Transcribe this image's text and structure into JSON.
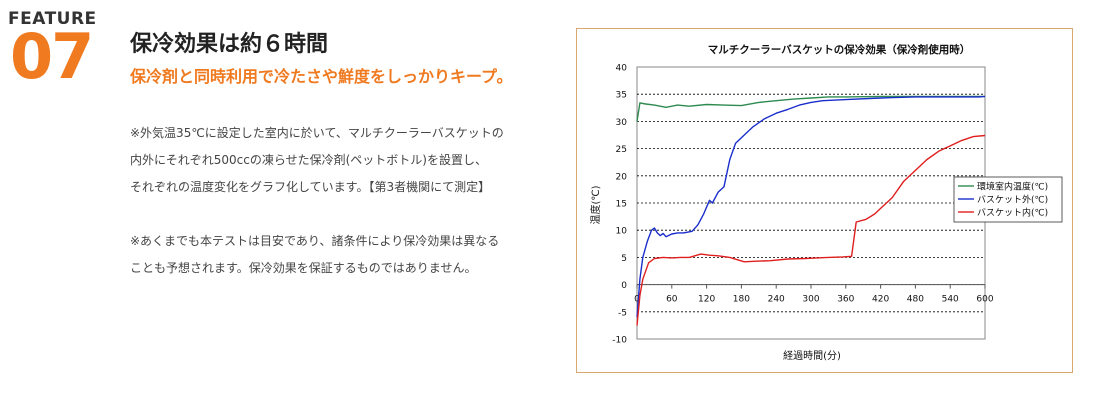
{
  "feature": {
    "label": "FEATURE",
    "number": "07"
  },
  "title": "保冷効果は約６時間",
  "subtitle": "保冷剤と同時利用で冷たさや鮮度をしっかりキープ。",
  "body": {
    "p1": [
      "※外気温35℃に設定した室内に於いて、マルチクーラーバスケットの",
      "内外にそれぞれ500ccの凍らせた保冷剤(ペットボトル)を設置し、",
      "それぞれの温度変化をグラフ化しています。【第3者機関にて測定】"
    ],
    "p2": [
      "※あくまでも本テストは目安であり、諸条件により保冷効果は異なる",
      "ことも予想されます。保冷効果を保証するものではありません。"
    ]
  },
  "colors": {
    "accent": "#f07a20",
    "frame": "#d9a86e"
  },
  "chart_data": {
    "type": "line",
    "title": "マルチクーラーバスケットの保冷効果（保冷剤使用時）",
    "xlabel": "経過時間(分)",
    "ylabel": "温度(℃)",
    "xlim": [
      0,
      600
    ],
    "ylim": [
      -10,
      40
    ],
    "xticks": [
      0,
      60,
      120,
      180,
      240,
      300,
      360,
      420,
      480,
      540,
      600
    ],
    "yticks": [
      -10,
      -5,
      0,
      5,
      10,
      15,
      20,
      25,
      30,
      35,
      40
    ],
    "grid": "horizontal dashed",
    "legend_position": "right",
    "series": [
      {
        "name": "環境室内温度(℃)",
        "color": "#2e8b4f",
        "points": [
          [
            0,
            30
          ],
          [
            5,
            33.4
          ],
          [
            15,
            33.2
          ],
          [
            30,
            33.0
          ],
          [
            50,
            32.6
          ],
          [
            70,
            33.0
          ],
          [
            90,
            32.8
          ],
          [
            120,
            33.1
          ],
          [
            150,
            33.0
          ],
          [
            180,
            32.9
          ],
          [
            210,
            33.5
          ],
          [
            240,
            33.8
          ],
          [
            270,
            34.1
          ],
          [
            300,
            34.3
          ],
          [
            330,
            34.5
          ],
          [
            360,
            34.5
          ],
          [
            420,
            34.6
          ],
          [
            480,
            34.6
          ],
          [
            540,
            34.6
          ],
          [
            600,
            34.6
          ]
        ]
      },
      {
        "name": "バスケット外(℃)",
        "color": "#1a2ecc",
        "points": [
          [
            0,
            -6
          ],
          [
            5,
            1
          ],
          [
            10,
            5
          ],
          [
            18,
            8
          ],
          [
            25,
            10
          ],
          [
            30,
            10.4
          ],
          [
            35,
            9.5
          ],
          [
            40,
            9.0
          ],
          [
            45,
            9.4
          ],
          [
            50,
            8.8
          ],
          [
            60,
            9.3
          ],
          [
            70,
            9.5
          ],
          [
            80,
            9.5
          ],
          [
            95,
            9.8
          ],
          [
            105,
            11
          ],
          [
            115,
            13
          ],
          [
            125,
            15.5
          ],
          [
            130,
            15
          ],
          [
            140,
            17
          ],
          [
            150,
            18
          ],
          [
            160,
            23
          ],
          [
            170,
            26
          ],
          [
            185,
            27.5
          ],
          [
            200,
            29
          ],
          [
            220,
            30.5
          ],
          [
            240,
            31.5
          ],
          [
            260,
            32.2
          ],
          [
            280,
            33
          ],
          [
            300,
            33.5
          ],
          [
            320,
            33.8
          ],
          [
            360,
            34
          ],
          [
            420,
            34.3
          ],
          [
            480,
            34.5
          ],
          [
            540,
            34.5
          ],
          [
            590,
            34.5
          ],
          [
            600,
            34.6
          ]
        ]
      },
      {
        "name": "バスケット内(℃)",
        "color": "#e01e1e",
        "points": [
          [
            0,
            -7.5
          ],
          [
            5,
            -2
          ],
          [
            10,
            1
          ],
          [
            20,
            4
          ],
          [
            30,
            4.8
          ],
          [
            45,
            5
          ],
          [
            60,
            4.9
          ],
          [
            75,
            5
          ],
          [
            90,
            5
          ],
          [
            110,
            5.6
          ],
          [
            125,
            5.4
          ],
          [
            140,
            5.3
          ],
          [
            160,
            5
          ],
          [
            185,
            4.2
          ],
          [
            205,
            4.3
          ],
          [
            230,
            4.4
          ],
          [
            260,
            4.7
          ],
          [
            290,
            4.8
          ],
          [
            310,
            4.9
          ],
          [
            330,
            5
          ],
          [
            355,
            5.1
          ],
          [
            370,
            5.2
          ],
          [
            378,
            11.5
          ],
          [
            395,
            12
          ],
          [
            410,
            13
          ],
          [
            420,
            14
          ],
          [
            440,
            16
          ],
          [
            460,
            19
          ],
          [
            480,
            21
          ],
          [
            500,
            23
          ],
          [
            520,
            24.5
          ],
          [
            540,
            25.5
          ],
          [
            560,
            26.5
          ],
          [
            580,
            27.2
          ],
          [
            600,
            27.4
          ]
        ]
      }
    ]
  }
}
